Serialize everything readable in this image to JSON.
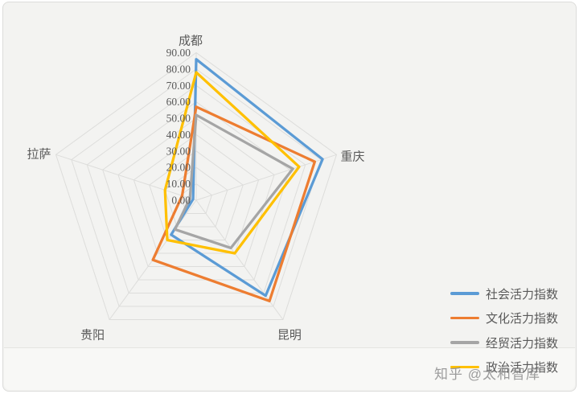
{
  "page": {
    "background": "#ffffff",
    "card_background": "#f3f3f1",
    "border_color": "#dcdcda"
  },
  "watermark": {
    "text": "知乎 @太和智库",
    "color": "#878787"
  },
  "chart_data": {
    "type": "radar",
    "title": "",
    "categories": [
      "成都",
      "重庆",
      "昆明",
      "贵阳",
      "拉萨"
    ],
    "series": [
      {
        "name": "社会活力指数",
        "color": "#5B9BD5",
        "values": [
          86,
          81,
          72,
          26,
          2
        ]
      },
      {
        "name": "文化活力指数",
        "color": "#ED7D31",
        "values": [
          57,
          76,
          76,
          45,
          9
        ]
      },
      {
        "name": "经贸活力指数",
        "color": "#A5A5A5",
        "values": [
          52,
          62,
          36,
          22,
          4
        ]
      },
      {
        "name": "政治活力指数",
        "color": "#FFC000",
        "values": [
          78,
          66,
          40,
          30,
          20
        ]
      }
    ],
    "r_axis": {
      "min": 0,
      "max": 90,
      "step": 10,
      "tick_labels": [
        "0.00",
        "10.00",
        "20.00",
        "30.00",
        "40.00",
        "50.00",
        "60.00",
        "70.00",
        "80.00",
        "90.00"
      ]
    },
    "grid": true,
    "grid_color": "#dddddb",
    "label_color": "#595959",
    "legend_position": "right"
  }
}
